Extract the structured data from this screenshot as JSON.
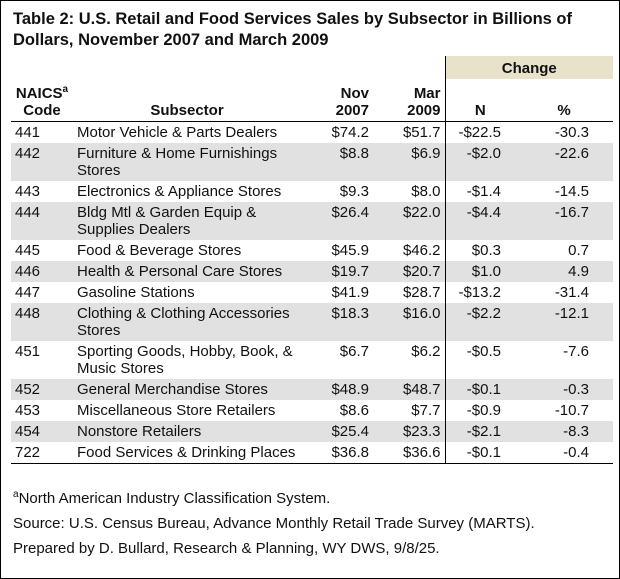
{
  "header": {
    "title": "Table 2: U.S. Retail and Food Services Sales by Subsector in Billions of Dollars, November 2007 and March 2009"
  },
  "table": {
    "group_header": "Change",
    "columns": {
      "code": "NAICS",
      "code_note": "a",
      "code_sub": "Code",
      "subsector": "Subsector",
      "nov": "Nov",
      "nov_year": "2007",
      "mar": "Mar",
      "mar_year": "2009",
      "n": "N",
      "pct": "%"
    },
    "rows": [
      [
        "441",
        "Motor Vehicle & Parts Dealers",
        "$74.2",
        "$51.7",
        "-$22.5",
        "-30.3"
      ],
      [
        "442",
        "Furniture & Home Furnishings Stores",
        "$8.8",
        "$6.9",
        "-$2.0",
        "-22.6"
      ],
      [
        "443",
        "Electronics & Appliance Stores",
        "$9.3",
        "$8.0",
        "-$1.4",
        "-14.5"
      ],
      [
        "444",
        "Bldg Mtl & Garden Equip & Supplies Dealers",
        "$26.4",
        "$22.0",
        "-$4.4",
        "-16.7"
      ],
      [
        "445",
        "Food & Beverage Stores",
        "$45.9",
        "$46.2",
        "$0.3",
        "0.7"
      ],
      [
        "446",
        "Health & Personal Care Stores",
        "$19.7",
        "$20.7",
        "$1.0",
        "4.9"
      ],
      [
        "447",
        "Gasoline Stations",
        "$41.9",
        "$28.7",
        "-$13.2",
        "-31.4"
      ],
      [
        "448",
        "Clothing & Clothing Accessories Stores",
        "$18.3",
        "$16.0",
        "-$2.2",
        "-12.1"
      ],
      [
        "451",
        "Sporting Goods, Hobby, Book, & Music Stores",
        "$6.7",
        "$6.2",
        "-$0.5",
        "-7.6"
      ],
      [
        "452",
        "General Merchandise Stores",
        "$48.9",
        "$48.7",
        "-$0.1",
        "-0.3"
      ],
      [
        "453",
        "Miscellaneous Store Retailers",
        "$8.6",
        "$7.7",
        "-$0.9",
        "-10.7"
      ],
      [
        "454",
        "Nonstore Retailers",
        "$25.4",
        "$23.3",
        "-$2.1",
        "-8.3"
      ],
      [
        "722",
        "Food Services & Drinking Places",
        "$36.8",
        "$36.6",
        "-$0.1",
        "-0.4"
      ]
    ]
  },
  "footer": {
    "note_mark": "a",
    "note": "North American Industry Classification System.",
    "source": "Source: U.S. Census Bureau, Advance Monthly Retail Trade Survey (MARTS).",
    "prepared": "Prepared by D. Bullard, Research & Planning, WY DWS, 9/8/25."
  }
}
